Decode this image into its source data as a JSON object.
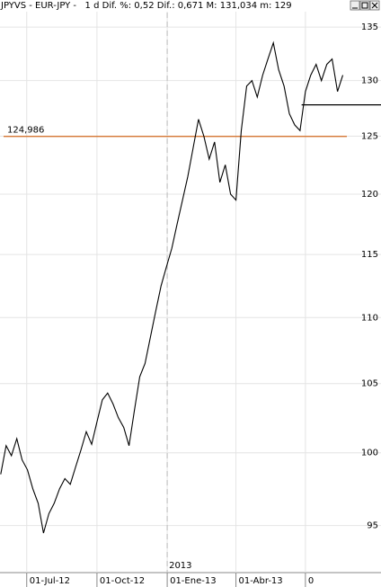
{
  "chart_data": {
    "type": "line",
    "title": "JPYVS - EUR-JPY -   1 d Dif. %: 0,52 Dif.: 0,671 M: 131,034 m: 129",
    "log_scale": true,
    "grid": true,
    "x": [
      "2012-05-28",
      "2012-06-04",
      "2012-06-11",
      "2012-06-18",
      "2012-06-25",
      "2012-07-02",
      "2012-07-09",
      "2012-07-16",
      "2012-07-23",
      "2012-07-30",
      "2012-08-06",
      "2012-08-13",
      "2012-08-20",
      "2012-08-27",
      "2012-09-03",
      "2012-09-10",
      "2012-09-17",
      "2012-09-24",
      "2012-10-01",
      "2012-10-08",
      "2012-10-15",
      "2012-10-22",
      "2012-10-29",
      "2012-11-05",
      "2012-11-12",
      "2012-11-19",
      "2012-11-26",
      "2012-12-03",
      "2012-12-10",
      "2012-12-17",
      "2012-12-24",
      "2012-12-31",
      "2013-01-07",
      "2013-01-14",
      "2013-01-21",
      "2013-01-28",
      "2013-02-04",
      "2013-02-11",
      "2013-02-18",
      "2013-02-25",
      "2013-03-04",
      "2013-03-11",
      "2013-03-18",
      "2013-03-25",
      "2013-04-01",
      "2013-04-08",
      "2013-04-15",
      "2013-04-22",
      "2013-04-29",
      "2013-05-06",
      "2013-05-13",
      "2013-05-20",
      "2013-05-27",
      "2013-06-03",
      "2013-06-10",
      "2013-06-17",
      "2013-06-24",
      "2013-07-01",
      "2013-07-08",
      "2013-07-15",
      "2013-07-22",
      "2013-07-29",
      "2013-08-05",
      "2013-08-12",
      "2013-08-19"
    ],
    "series": [
      {
        "color": "#000000",
        "values": [
          98.5,
          100.5,
          99.8,
          101,
          99.5,
          98.8,
          97.5,
          96.5,
          94.5,
          95.8,
          96.5,
          97.5,
          98.2,
          97.8,
          99,
          100.2,
          101.5,
          100.6,
          102.2,
          103.8,
          104.3,
          103.5,
          102.5,
          101.8,
          100.5,
          103,
          105.5,
          106.5,
          108.5,
          110.5,
          112.5,
          114,
          115.5,
          117.5,
          119.5,
          121.5,
          124,
          126.5,
          125,
          123,
          124.5,
          121,
          122.5,
          120,
          119.5,
          125.5,
          129.5,
          130,
          128.5,
          130.5,
          132,
          133.5,
          131,
          129.5,
          127,
          126,
          125.5,
          129,
          130.5,
          131.5,
          130,
          131.5,
          132,
          129,
          130.5
        ]
      }
    ],
    "xlim": [
      "2012-05-27",
      "2013-10-08"
    ],
    "xticks": [
      {
        "value": "2012-07-01",
        "label": "01-Jul-12"
      },
      {
        "value": "2012-10-01",
        "label": "01-Oct-12"
      },
      {
        "value": "2013-01-01",
        "label": "01-Ene-13"
      },
      {
        "value": "2013-04-01",
        "label": "01-Abr-13"
      },
      {
        "value": "2013-07-01",
        "label": "0"
      }
    ],
    "year_marker": {
      "value": "2013-01-01",
      "label": "2013"
    },
    "ylim": [
      91.9,
      137.6
    ],
    "yticks": [
      95,
      100,
      105,
      110,
      115,
      120,
      125,
      130,
      135
    ],
    "level_line": {
      "value": 124.986,
      "label": "124,986",
      "color": "#d2691e"
    },
    "support_line": {
      "value": 127.8,
      "from": "2013-06-26",
      "color": "#000000"
    }
  }
}
